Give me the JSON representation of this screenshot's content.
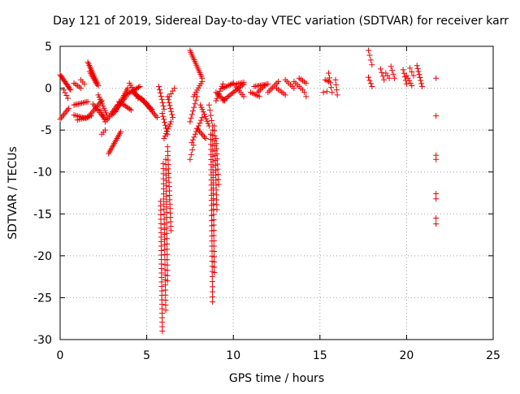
{
  "chart_data": {
    "type": "scatter",
    "title": "Day 121 of 2019, Sidereal Day-to-day VTEC variation (SDTVAR) for receiver karr",
    "xlabel": "GPS time / hours",
    "ylabel": "SDTVAR / TECUs",
    "xlim": [
      0,
      25
    ],
    "ylim": [
      -30,
      5
    ],
    "xticks": [
      0,
      5,
      10,
      15,
      20,
      25
    ],
    "yticks": [
      5,
      0,
      -5,
      -10,
      -15,
      -20,
      -25,
      -30
    ],
    "grid": true,
    "marker": "+",
    "color": "#ee0000",
    "segments": [
      {
        "x0": 0.0,
        "y0": 1.6,
        "x1": 0.6,
        "y1": -0.2,
        "n": 14
      },
      {
        "x0": 0.0,
        "y0": -3.7,
        "x1": 0.5,
        "y1": -2.4,
        "n": 8
      },
      {
        "x0": 0.2,
        "y0": -0.2,
        "x1": 0.45,
        "y1": -1.2,
        "n": 4
      },
      {
        "x0": 0.8,
        "y0": 0.6,
        "x1": 1.2,
        "y1": 0.0,
        "n": 5
      },
      {
        "x0": 0.8,
        "y0": -2.0,
        "x1": 1.6,
        "y1": -1.6,
        "n": 10
      },
      {
        "x0": 0.8,
        "y0": -3.2,
        "x1": 1.5,
        "y1": -3.6,
        "n": 8
      },
      {
        "x0": 1.0,
        "y0": -3.8,
        "x1": 1.8,
        "y1": -3.3,
        "n": 8
      },
      {
        "x0": 1.2,
        "y0": 1.0,
        "x1": 1.4,
        "y1": 0.5,
        "n": 3
      },
      {
        "x0": 1.6,
        "y0": 3.1,
        "x1": 2.2,
        "y1": 0.3,
        "n": 16
      },
      {
        "x0": 1.7,
        "y0": 2.0,
        "x1": 2.1,
        "y1": 0.5,
        "n": 8
      },
      {
        "x0": 1.6,
        "y0": -3.5,
        "x1": 2.4,
        "y1": -1.5,
        "n": 12
      },
      {
        "x0": 1.9,
        "y0": -1.9,
        "x1": 2.6,
        "y1": -3.7,
        "n": 10
      },
      {
        "x0": 2.2,
        "y0": -0.8,
        "x1": 2.7,
        "y1": -3.2,
        "n": 10
      },
      {
        "x0": 2.3,
        "y0": -2.6,
        "x1": 2.6,
        "y1": -4.0,
        "n": 6
      },
      {
        "x0": 2.4,
        "y0": -5.5,
        "x1": 2.6,
        "y1": -5.0,
        "n": 3
      },
      {
        "x0": 2.7,
        "y0": -3.8,
        "x1": 3.3,
        "y1": -2.0,
        "n": 10
      },
      {
        "x0": 2.8,
        "y0": -7.8,
        "x1": 3.5,
        "y1": -5.2,
        "n": 14
      },
      {
        "x0": 3.0,
        "y0": -3.2,
        "x1": 3.8,
        "y1": -1.0,
        "n": 14
      },
      {
        "x0": 3.2,
        "y0": -2.8,
        "x1": 3.9,
        "y1": 0.0,
        "n": 14
      },
      {
        "x0": 3.4,
        "y0": -1.6,
        "x1": 4.1,
        "y1": -2.6,
        "n": 10
      },
      {
        "x0": 3.8,
        "y0": -0.8,
        "x1": 4.6,
        "y1": 0.2,
        "n": 12
      },
      {
        "x0": 4.0,
        "y0": 0.6,
        "x1": 4.5,
        "y1": -1.2,
        "n": 8
      },
      {
        "x0": 4.2,
        "y0": -0.5,
        "x1": 5.0,
        "y1": -1.8,
        "n": 12
      },
      {
        "x0": 4.4,
        "y0": -0.8,
        "x1": 5.3,
        "y1": -2.5,
        "n": 14
      },
      {
        "x0": 4.7,
        "y0": -1.2,
        "x1": 5.6,
        "y1": -3.5,
        "n": 14
      },
      {
        "x0": 5.7,
        "y0": 0.2,
        "x1": 6.0,
        "y1": -2.5,
        "n": 8
      },
      {
        "x0": 5.9,
        "y0": -3.0,
        "x1": 6.2,
        "y1": -5.5,
        "n": 8
      },
      {
        "x0": 6.0,
        "y0": -6.0,
        "x1": 6.4,
        "y1": -4.0,
        "n": 8
      },
      {
        "x0": 6.2,
        "y0": -1.0,
        "x1": 6.5,
        "y1": -3.5,
        "n": 8
      },
      {
        "x0": 6.3,
        "y0": -1.0,
        "x1": 6.6,
        "y1": 0.0,
        "n": 4
      },
      {
        "x0": 5.8,
        "y0": -13.5,
        "x1": 5.9,
        "y1": -29.0,
        "n": 30
      },
      {
        "x0": 5.95,
        "y0": -9.0,
        "x1": 6.1,
        "y1": -26.5,
        "n": 30
      },
      {
        "x0": 6.1,
        "y0": -8.5,
        "x1": 6.2,
        "y1": -23.0,
        "n": 24
      },
      {
        "x0": 6.2,
        "y0": -7.0,
        "x1": 6.4,
        "y1": -17.0,
        "n": 20
      },
      {
        "x0": 7.5,
        "y0": 4.5,
        "x1": 8.2,
        "y1": 1.2,
        "n": 16
      },
      {
        "x0": 7.5,
        "y0": -4.0,
        "x1": 7.9,
        "y1": -1.0,
        "n": 8
      },
      {
        "x0": 7.6,
        "y0": -6.5,
        "x1": 8.2,
        "y1": -3.5,
        "n": 10
      },
      {
        "x0": 7.5,
        "y0": -8.5,
        "x1": 7.7,
        "y1": -6.8,
        "n": 4
      },
      {
        "x0": 7.7,
        "y0": -1.0,
        "x1": 8.2,
        "y1": 0.8,
        "n": 8
      },
      {
        "x0": 7.9,
        "y0": -4.8,
        "x1": 8.4,
        "y1": -6.0,
        "n": 8
      },
      {
        "x0": 8.1,
        "y0": -2.0,
        "x1": 8.6,
        "y1": -4.5,
        "n": 10
      },
      {
        "x0": 8.6,
        "y0": -2.0,
        "x1": 8.8,
        "y1": -4.5,
        "n": 5
      },
      {
        "x0": 8.7,
        "y0": -5.5,
        "x1": 8.8,
        "y1": -25.5,
        "n": 34
      },
      {
        "x0": 8.8,
        "y0": -5.0,
        "x1": 8.9,
        "y1": -22.0,
        "n": 28
      },
      {
        "x0": 8.9,
        "y0": -4.5,
        "x1": 9.05,
        "y1": -14.5,
        "n": 18
      },
      {
        "x0": 9.0,
        "y0": -6.0,
        "x1": 9.15,
        "y1": -11.5,
        "n": 10
      },
      {
        "x0": 9.0,
        "y0": -1.5,
        "x1": 9.4,
        "y1": 0.5,
        "n": 8
      },
      {
        "x0": 9.0,
        "y0": -0.5,
        "x1": 9.5,
        "y1": -1.5,
        "n": 8
      },
      {
        "x0": 9.4,
        "y0": -1.5,
        "x1": 10.6,
        "y1": 0.5,
        "n": 16
      },
      {
        "x0": 9.4,
        "y0": 0.0,
        "x1": 10.0,
        "y1": 0.6,
        "n": 8
      },
      {
        "x0": 10.0,
        "y0": 0.6,
        "x1": 10.6,
        "y1": -1.0,
        "n": 8
      },
      {
        "x0": 10.2,
        "y0": 0.5,
        "x1": 10.6,
        "y1": 0.7,
        "n": 5
      },
      {
        "x0": 11.0,
        "y0": -0.5,
        "x1": 11.5,
        "y1": -1.0,
        "n": 6
      },
      {
        "x0": 11.2,
        "y0": 0.2,
        "x1": 12.0,
        "y1": 0.5,
        "n": 10
      },
      {
        "x0": 11.4,
        "y0": -0.5,
        "x1": 11.8,
        "y1": 0.3,
        "n": 6
      },
      {
        "x0": 12.0,
        "y0": -0.5,
        "x1": 12.6,
        "y1": 0.8,
        "n": 8
      },
      {
        "x0": 12.5,
        "y0": 0.0,
        "x1": 13.0,
        "y1": -0.8,
        "n": 6
      },
      {
        "x0": 13.0,
        "y0": 1.0,
        "x1": 13.5,
        "y1": 0.0,
        "n": 6
      },
      {
        "x0": 13.5,
        "y0": 0.8,
        "x1": 14.0,
        "y1": -0.2,
        "n": 6
      },
      {
        "x0": 13.8,
        "y0": 1.2,
        "x1": 14.2,
        "y1": 0.6,
        "n": 5
      },
      {
        "x0": 14.1,
        "y0": -0.5,
        "x1": 14.2,
        "y1": -1.0,
        "n": 2
      },
      {
        "x0": 15.3,
        "y0": 1.0,
        "x1": 15.5,
        "y1": 0.8,
        "n": 3
      },
      {
        "x0": 15.5,
        "y0": 1.8,
        "x1": 15.7,
        "y1": -0.5,
        "n": 5
      },
      {
        "x0": 15.9,
        "y0": 1.0,
        "x1": 16.0,
        "y1": -0.8,
        "n": 4
      },
      {
        "x0": 15.2,
        "y0": -0.5,
        "x1": 15.4,
        "y1": -0.4,
        "n": 2
      },
      {
        "x0": 17.8,
        "y0": 4.5,
        "x1": 18.0,
        "y1": 2.8,
        "n": 4
      },
      {
        "x0": 17.8,
        "y0": 1.3,
        "x1": 18.0,
        "y1": 0.2,
        "n": 4
      },
      {
        "x0": 18.5,
        "y0": 2.3,
        "x1": 18.7,
        "y1": 1.0,
        "n": 4
      },
      {
        "x0": 18.8,
        "y0": 1.8,
        "x1": 19.0,
        "y1": 1.2,
        "n": 3
      },
      {
        "x0": 19.1,
        "y0": 2.6,
        "x1": 19.3,
        "y1": 1.2,
        "n": 4
      },
      {
        "x0": 19.8,
        "y0": 2.2,
        "x1": 20.0,
        "y1": 0.5,
        "n": 5
      },
      {
        "x0": 20.0,
        "y0": 1.5,
        "x1": 20.3,
        "y1": 0.3,
        "n": 5
      },
      {
        "x0": 20.2,
        "y0": 2.4,
        "x1": 20.4,
        "y1": 1.5,
        "n": 3
      },
      {
        "x0": 20.6,
        "y0": 2.7,
        "x1": 20.9,
        "y1": 0.2,
        "n": 8
      },
      {
        "x0": 21.7,
        "y0": 1.2,
        "x1": 21.7,
        "y1": 1.2,
        "n": 1
      },
      {
        "x0": 21.7,
        "y0": -3.3,
        "x1": 21.7,
        "y1": -3.3,
        "n": 1
      },
      {
        "x0": 21.7,
        "y0": -8.0,
        "x1": 21.7,
        "y1": -8.5,
        "n": 2
      },
      {
        "x0": 21.7,
        "y0": -12.6,
        "x1": 21.7,
        "y1": -13.2,
        "n": 2
      },
      {
        "x0": 21.7,
        "y0": -15.5,
        "x1": 21.7,
        "y1": -16.2,
        "n": 2
      }
    ]
  }
}
